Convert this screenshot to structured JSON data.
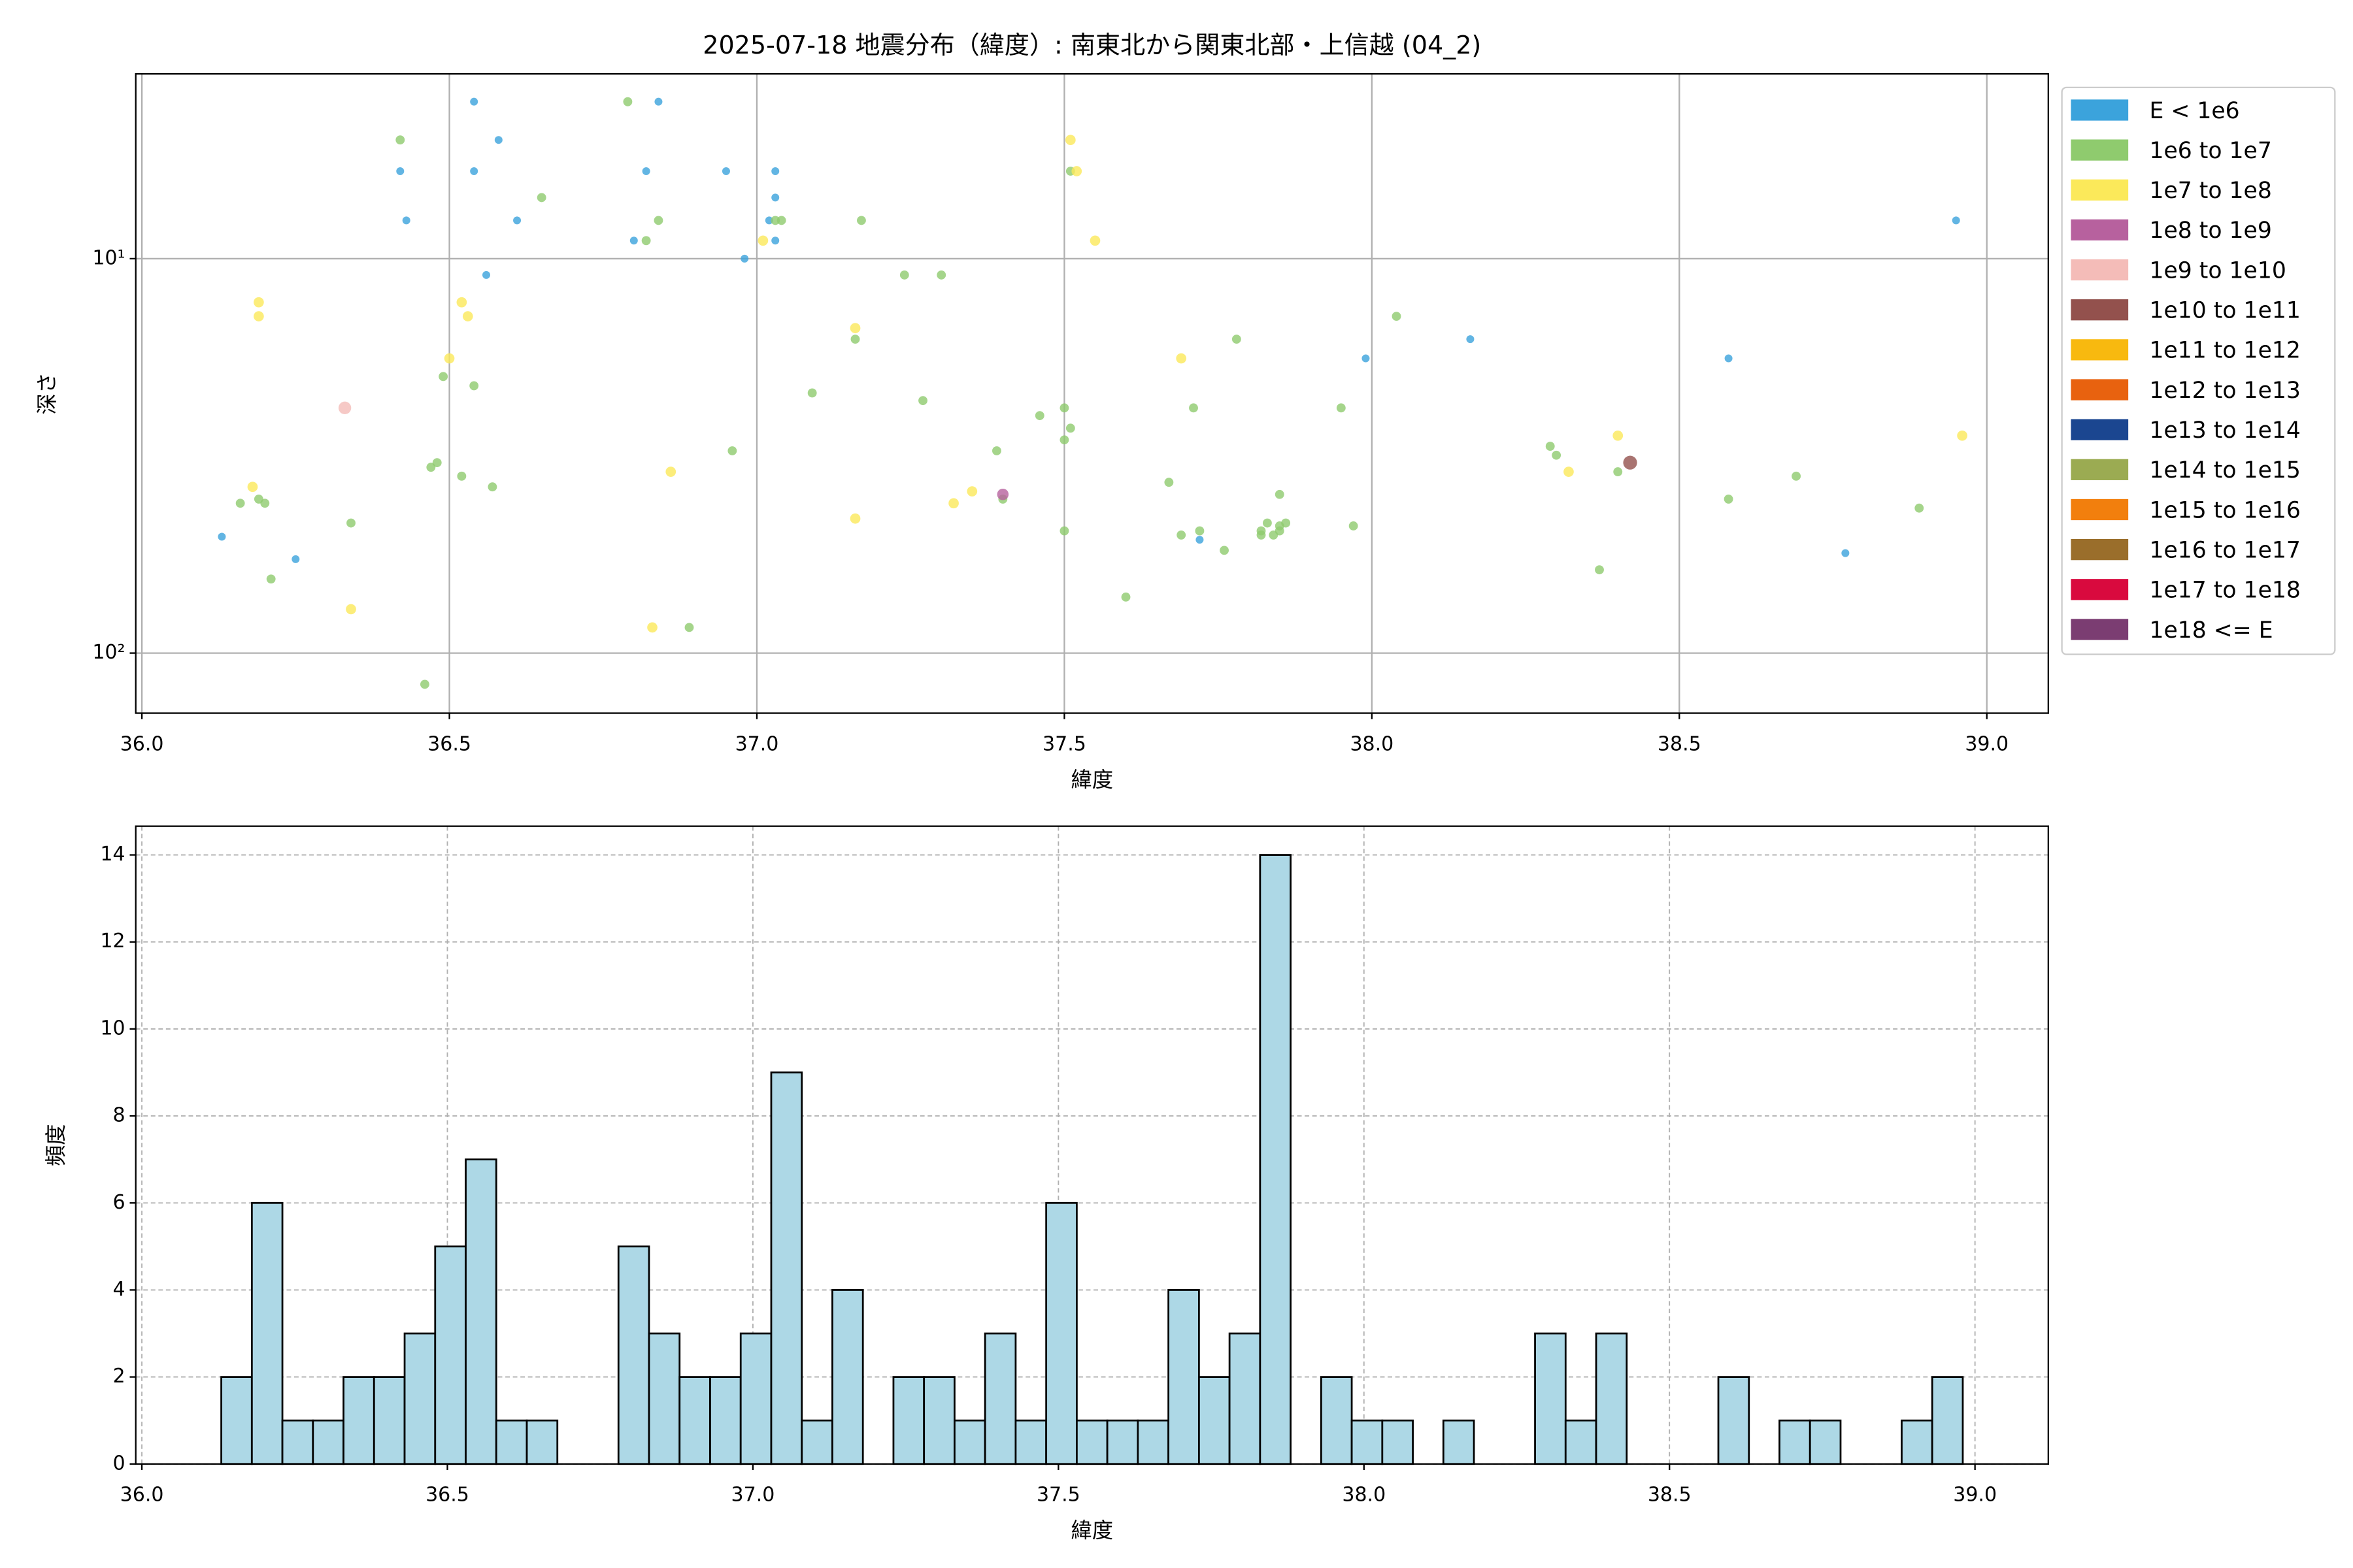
{
  "chart_data": [
    {
      "type": "scatter",
      "title": "2025-07-18 地震分布（緯度）: 南東北から関東北部・上信越 (04_2)",
      "xlabel": "緯度",
      "ylabel": "深さ",
      "xlim": [
        35.99,
        39.1
      ],
      "ylim": [
        3.4,
        142
      ],
      "yscale": "log",
      "y_inverted": true,
      "grid": true,
      "legend": "outside-right",
      "xticks": [
        {
          "value": 36,
          "label": "36.0"
        },
        36.5,
        {
          "value": 37,
          "label": "37.0"
        },
        37.5,
        {
          "value": 38,
          "label": "38.0"
        },
        38.5,
        {
          "value": 39,
          "label": "39.0"
        }
      ],
      "yticks": [
        {
          "value": 10,
          "label": "10¹"
        },
        {
          "value": 100,
          "label": "10²"
        }
      ],
      "series": [
        {
          "name": "E < 1e6",
          "color": "#3ba3dc",
          "x": [
            36.13,
            36.25,
            36.42,
            36.43,
            36.54,
            36.54,
            36.56,
            36.58,
            36.61,
            36.8,
            36.82,
            36.84,
            36.95,
            36.98,
            37.02,
            37.03,
            37.03,
            37.03,
            37.72,
            37.99,
            38.16,
            38.58,
            38.77,
            38.95
          ],
          "values": [
            50.7,
            57.8,
            6.0,
            8.0,
            4.0,
            6.0,
            11.0,
            5.0,
            8.0,
            9.0,
            6.0,
            4.0,
            6.0,
            10.0,
            8.0,
            6.0,
            7.0,
            9.0,
            51.6,
            17.9,
            16.0,
            17.9,
            55.8,
            8.0
          ]
        },
        {
          "name": "1e6 to 1e7",
          "color": "#8fcb6e",
          "x": [
            36.16,
            36.19,
            36.2,
            36.21,
            36.34,
            36.42,
            36.46,
            36.47,
            36.48,
            36.49,
            36.52,
            36.54,
            36.57,
            36.65,
            36.79,
            36.82,
            36.84,
            36.89,
            36.96,
            37.03,
            37.04,
            37.09,
            37.16,
            37.17,
            37.24,
            37.27,
            37.3,
            37.39,
            37.4,
            37.46,
            37.5,
            37.5,
            37.51,
            37.5,
            37.51,
            37.6,
            37.67,
            37.69,
            37.72,
            37.76,
            37.78,
            37.71,
            37.82,
            37.82,
            37.83,
            37.84,
            37.85,
            37.85,
            37.86,
            37.85,
            37.95,
            37.97,
            38.04,
            38.29,
            38.3,
            38.37,
            38.4,
            38.58,
            38.69,
            38.89
          ],
          "values": [
            41.7,
            40.7,
            41.7,
            64.9,
            46.8,
            5.0,
            120,
            33.8,
            32.9,
            19.9,
            35.6,
            21.0,
            37.9,
            7.0,
            4.0,
            9.0,
            8.0,
            86.1,
            30.7,
            8.0,
            8.0,
            21.9,
            16.0,
            8.0,
            11.0,
            22.9,
            11.0,
            30.7,
            40.7,
            25.0,
            23.9,
            28.8,
            26.9,
            49.0,
            6.0,
            72.1,
            36.9,
            50.2,
            49.0,
            54.9,
            16.0,
            23.9,
            49.0,
            50.2,
            46.8,
            50.2,
            39.6,
            47.6,
            46.8,
            49.0,
            23.9,
            47.6,
            14.0,
            29.9,
            31.5,
            61.5,
            34.7,
            40.7,
            35.6,
            42.9
          ]
        },
        {
          "name": "1e7 to 1e8",
          "color": "#fbe95a",
          "x": [
            36.19,
            36.19,
            36.18,
            36.34,
            36.5,
            36.52,
            36.53,
            36.83,
            36.86,
            37.01,
            37.16,
            37.16,
            37.32,
            37.35,
            37.51,
            37.52,
            37.55,
            37.69,
            38.32,
            38.4,
            38.96
          ],
          "values": [
            12.9,
            14.0,
            37.9,
            77.4,
            17.9,
            12.9,
            14.0,
            86.1,
            34.7,
            9.0,
            15.0,
            45.6,
            41.7,
            38.9,
            5.0,
            6.0,
            9.0,
            17.9,
            34.7,
            28.1,
            28.1
          ]
        },
        {
          "name": "1e8 to 1e9",
          "color": "#b7619e",
          "x": [
            37.4
          ],
          "values": [
            39.6
          ]
        },
        {
          "name": "1e9 to 1e10",
          "color": "#f4bcb8",
          "x": [
            36.33
          ],
          "values": [
            23.9
          ]
        },
        {
          "name": "1e10 to 1e11",
          "color": "#93514d",
          "x": [
            38.42
          ],
          "values": [
            32.9
          ]
        },
        {
          "name": "1e11 to 1e12",
          "color": "#f8b90f",
          "x": [],
          "values": []
        },
        {
          "name": "1e12 to 1e13",
          "color": "#e8620f",
          "x": [],
          "values": []
        },
        {
          "name": "1e13 to 1e14",
          "color": "#1b4690",
          "x": [],
          "values": []
        },
        {
          "name": "1e14 to 1e15",
          "color": "#9bab52",
          "x": [],
          "values": []
        },
        {
          "name": "1e15 to 1e16",
          "color": "#f27f0d",
          "x": [],
          "values": []
        },
        {
          "name": "1e16 to 1e17",
          "color": "#9a6e2b",
          "x": [],
          "values": []
        },
        {
          "name": "1e17 to 1e18",
          "color": "#d90a3e",
          "x": [],
          "values": []
        },
        {
          "name": "1e18 <= E",
          "color": "#7b3d72",
          "x": [],
          "values": []
        }
      ]
    },
    {
      "type": "histogram",
      "xlabel": "緯度",
      "ylabel": "頻度",
      "xlim": [
        35.99,
        39.12
      ],
      "ylim": [
        0,
        14.66
      ],
      "grid": true,
      "grid_style": "dashed",
      "color": "#add8e6",
      "edgecolor": "#000000",
      "xticks": [
        {
          "value": 36,
          "label": "36.0"
        },
        36.5,
        {
          "value": 37,
          "label": "37.0"
        },
        37.5,
        {
          "value": 38,
          "label": "38.0"
        },
        38.5,
        {
          "value": 39,
          "label": "39.0"
        }
      ],
      "yticks": [
        0,
        2,
        4,
        6,
        8,
        10,
        12,
        14
      ],
      "bins": [
        36.13,
        36.18,
        36.23,
        36.28,
        36.33,
        36.38,
        36.43,
        36.48,
        36.53,
        36.58,
        36.63,
        36.68,
        36.73,
        36.78,
        36.83,
        36.88,
        36.93,
        36.98,
        37.03,
        37.08,
        37.13,
        37.18,
        37.23,
        37.28,
        37.33,
        37.38,
        37.43,
        37.48,
        37.53,
        37.58,
        37.63,
        37.68,
        37.73,
        37.78,
        37.83,
        37.88,
        37.93,
        37.98,
        38.03,
        38.08,
        38.13,
        38.18,
        38.23,
        38.28,
        38.33,
        38.38,
        38.43,
        38.48,
        38.53,
        38.58,
        38.63,
        38.68,
        38.73,
        38.78,
        38.83,
        38.88,
        38.93,
        38.98
      ],
      "values": [
        2,
        6,
        1,
        1,
        2,
        2,
        3,
        5,
        7,
        1,
        1,
        0,
        0,
        5,
        3,
        2,
        2,
        3,
        9,
        1,
        4,
        0,
        2,
        2,
        1,
        3,
        1,
        6,
        1,
        1,
        1,
        4,
        2,
        3,
        14,
        0,
        2,
        1,
        1,
        0,
        1,
        0,
        0,
        3,
        1,
        3,
        0,
        0,
        0,
        2,
        0,
        1,
        1,
        0,
        0,
        1,
        2
      ]
    }
  ]
}
